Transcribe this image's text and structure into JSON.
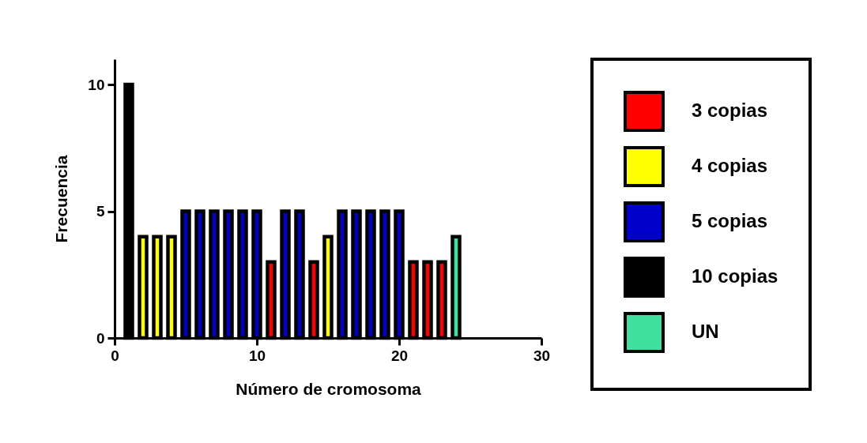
{
  "chart_data": {
    "type": "bar",
    "xlabel": "Número de cromosoma",
    "ylabel": "Frecuencia",
    "x": [
      1,
      2,
      3,
      4,
      5,
      6,
      7,
      8,
      9,
      10,
      11,
      12,
      13,
      14,
      15,
      16,
      17,
      18,
      19,
      20,
      21,
      22,
      23,
      24
    ],
    "xlim": [
      0,
      30
    ],
    "xticks": [
      0,
      10,
      20,
      30
    ],
    "ylim": [
      0,
      11
    ],
    "yticks": [
      0,
      5,
      10
    ],
    "stacked": true,
    "legend": "right",
    "grid": false,
    "series": [
      {
        "name": "3 copias",
        "color": "#ff0000",
        "values": [
          null,
          null,
          null,
          null,
          null,
          null,
          null,
          null,
          null,
          null,
          3,
          null,
          null,
          3,
          null,
          null,
          null,
          null,
          null,
          null,
          3,
          3,
          3,
          null
        ]
      },
      {
        "name": "4 copias",
        "color": "#ffff00",
        "values": [
          null,
          4,
          4,
          4,
          null,
          null,
          null,
          null,
          null,
          null,
          null,
          null,
          null,
          null,
          4,
          null,
          null,
          null,
          null,
          null,
          null,
          null,
          null,
          null
        ]
      },
      {
        "name": "5 copias",
        "color": "#0000cc",
        "values": [
          null,
          null,
          null,
          null,
          5,
          5,
          5,
          5,
          5,
          5,
          null,
          5,
          5,
          null,
          null,
          5,
          5,
          5,
          5,
          5,
          null,
          null,
          null,
          null
        ]
      },
      {
        "name": "10 copias",
        "color": "#000000",
        "values": [
          10,
          null,
          null,
          null,
          null,
          null,
          null,
          null,
          null,
          null,
          null,
          null,
          null,
          null,
          null,
          null,
          null,
          null,
          null,
          null,
          null,
          null,
          null,
          null
        ]
      },
      {
        "name": "UN",
        "color": "#40e0a0",
        "values": [
          null,
          null,
          null,
          null,
          null,
          null,
          null,
          null,
          null,
          null,
          null,
          null,
          null,
          null,
          null,
          null,
          null,
          null,
          null,
          null,
          null,
          null,
          null,
          4
        ]
      }
    ]
  }
}
